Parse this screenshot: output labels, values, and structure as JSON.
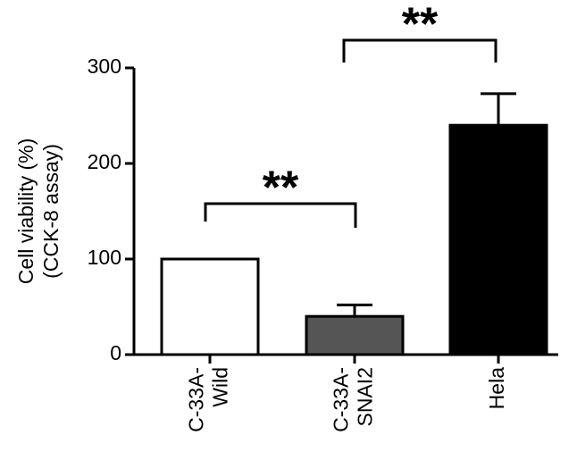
{
  "chart_data": {
    "type": "bar",
    "y_label": [
      "Cell viability (%)",
      "(CCK-8 assay)"
    ],
    "categories": [
      [
        "C-33A-",
        "Wild"
      ],
      [
        "C-33A-",
        "SNAI2"
      ],
      [
        "Hela"
      ]
    ],
    "values": [
      100,
      40,
      240
    ],
    "errors": [
      0,
      12,
      33
    ],
    "colors": [
      "#ffffff",
      "#555555",
      "#000000"
    ],
    "ylim": [
      0,
      300
    ],
    "yticks": [
      0,
      100,
      200,
      300
    ],
    "annotations": [
      "**",
      "**"
    ]
  }
}
